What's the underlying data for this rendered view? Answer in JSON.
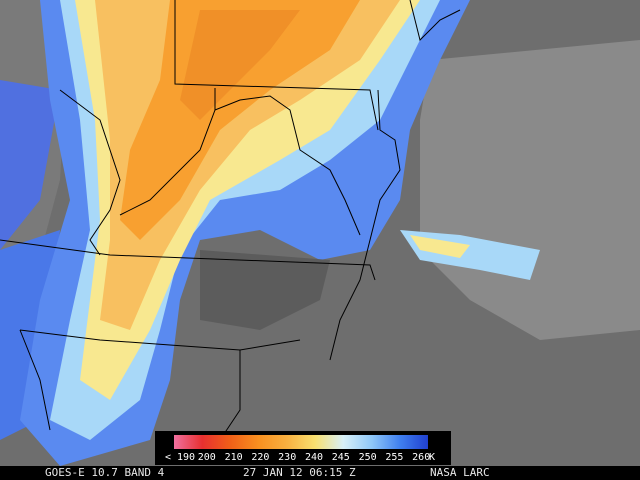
{
  "colorbar": {
    "labels": [
      "< 190",
      "200",
      "210",
      "220",
      "230",
      "240",
      "245",
      "250",
      "255",
      "260"
    ],
    "unit": "K",
    "colors": [
      "#f070a0",
      "#e83030",
      "#f06018",
      "#f89020",
      "#f8b040",
      "#f8e070",
      "#d8f0f8",
      "#90c8f8",
      "#4080f0",
      "#2040d0"
    ]
  },
  "footer": {
    "satellite": "GOES-E 10.7 BAND 4",
    "time": "27 JAN 12 06:15 Z",
    "source": "NASA LARC"
  }
}
